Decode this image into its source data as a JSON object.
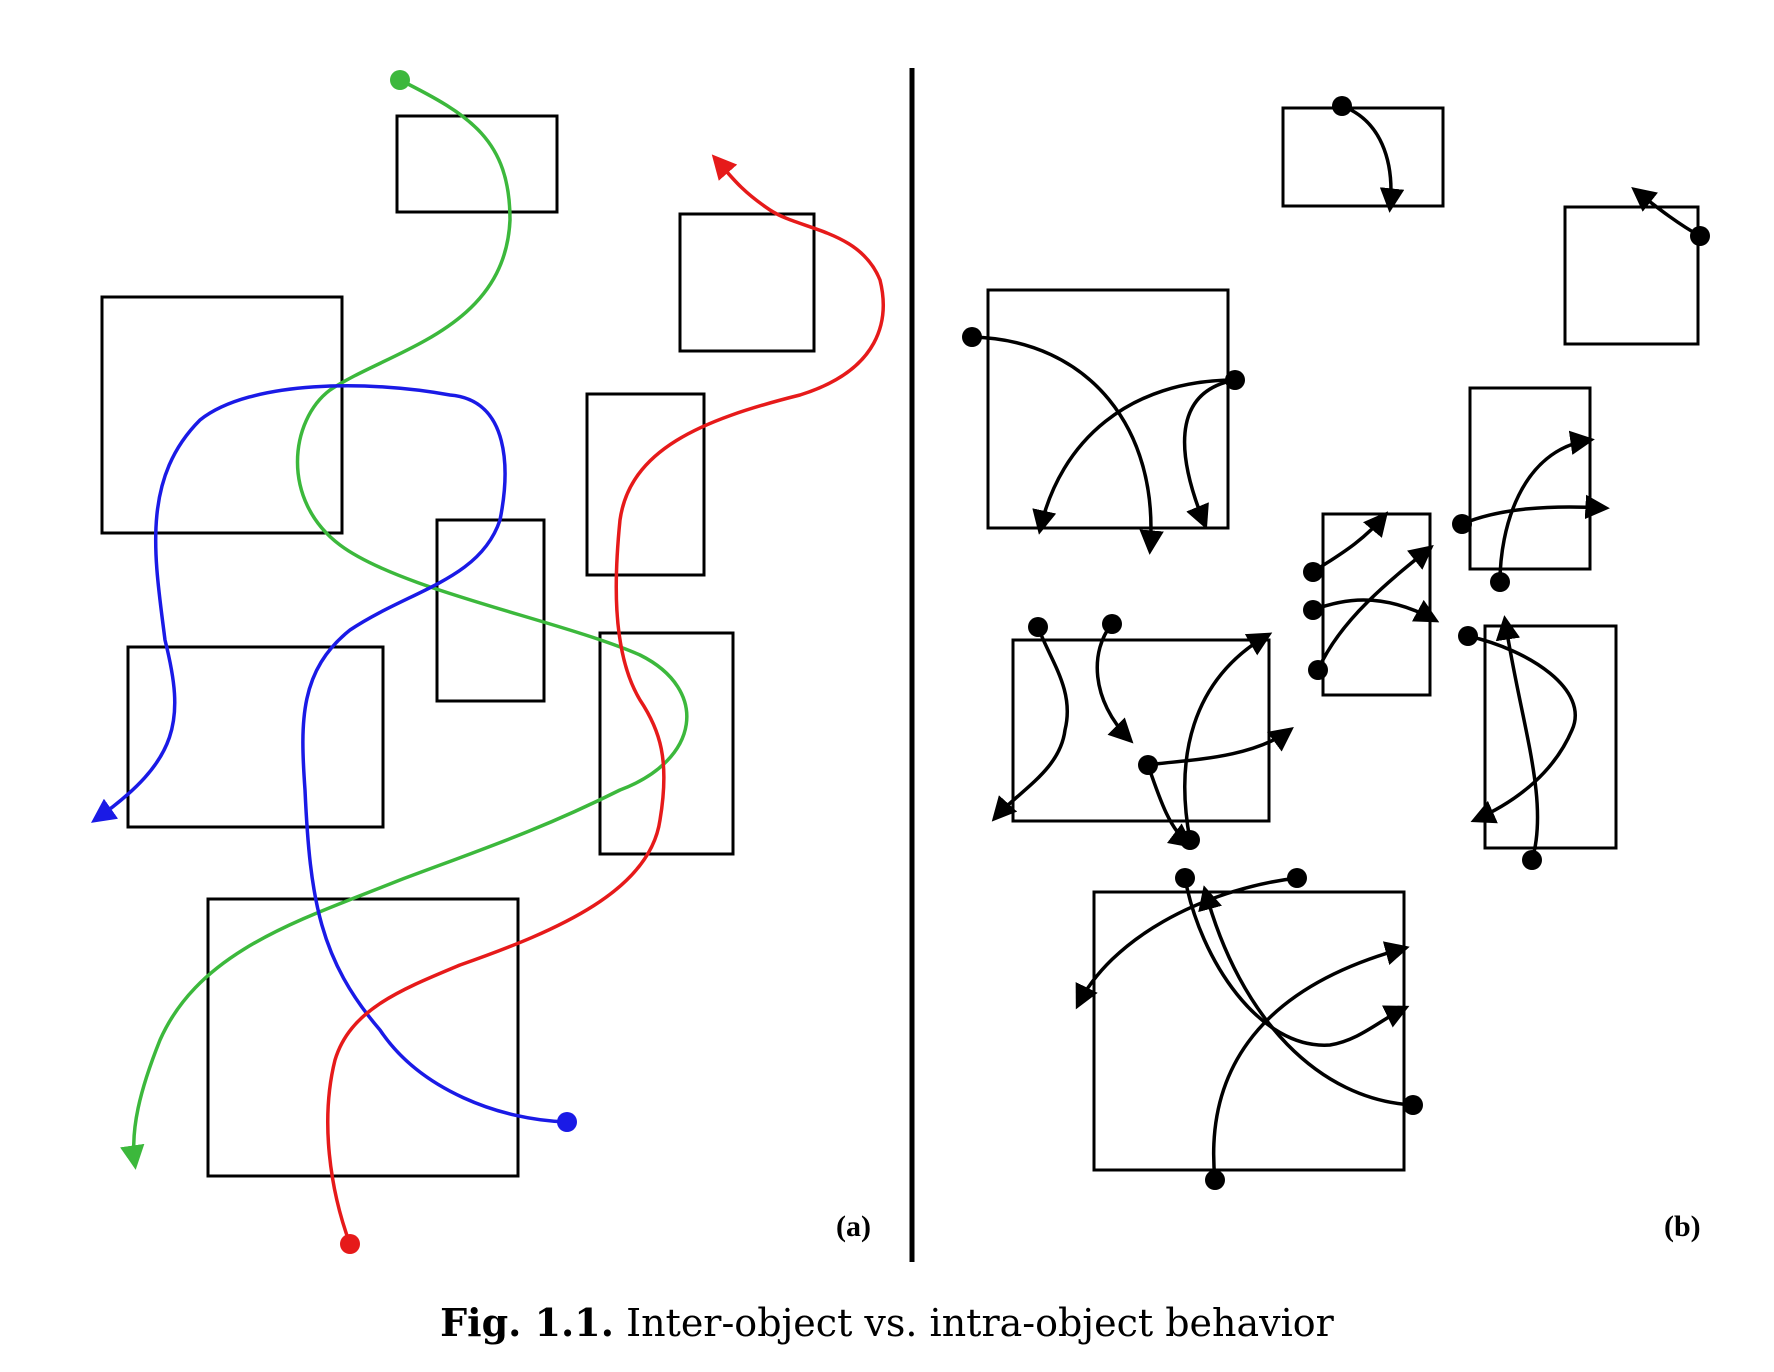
{
  "panels": {
    "a": {
      "label": "(a)"
    },
    "b": {
      "label": "(b)"
    }
  },
  "caption": {
    "label": "Fig. 1.1.",
    "text": "Inter-object vs. intra-object behavior"
  },
  "colors": {
    "green": "#3cb83c",
    "blue": "#1a1ae6",
    "red": "#e61a1a",
    "black": "#000000"
  }
}
